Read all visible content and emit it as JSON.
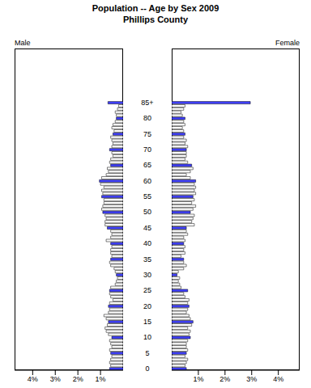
{
  "chart_data": {
    "type": "bar",
    "orientation": "horizontal",
    "title": "Population -- Age by Sex 2009",
    "subtitle": "Phillips County",
    "categories": [
      "0",
      null,
      null,
      null,
      null,
      "5",
      null,
      null,
      null,
      null,
      "10",
      null,
      null,
      null,
      null,
      "15",
      null,
      null,
      null,
      null,
      "20",
      null,
      null,
      null,
      null,
      "25",
      null,
      null,
      null,
      null,
      "30",
      null,
      null,
      null,
      null,
      "35",
      null,
      null,
      null,
      null,
      "40",
      null,
      null,
      null,
      null,
      "45",
      null,
      null,
      null,
      null,
      "50",
      null,
      null,
      null,
      null,
      "55",
      null,
      null,
      null,
      null,
      "60",
      null,
      null,
      null,
      null,
      "65",
      null,
      null,
      null,
      null,
      "70",
      null,
      null,
      null,
      null,
      "75",
      null,
      null,
      null,
      null,
      "80",
      null,
      null,
      null,
      null,
      "85+"
    ],
    "xlim": [
      0,
      4.8
    ],
    "xticks": [
      {
        "value": 1,
        "label": "1%"
      },
      {
        "value": 2,
        "label": "2%"
      },
      {
        "value": 3,
        "label": "3%"
      },
      {
        "value": 4,
        "label": "4%"
      }
    ],
    "series": [
      {
        "name": "Male",
        "colors": [
          "#4040ff",
          "#ffffff",
          "#ffffff",
          "#ffffff",
          "#ffffff",
          "#4040ff",
          "#ffffff",
          "#ffffff",
          "#ffffff",
          "#ffffff",
          "#4040ff",
          "#ffffff",
          "#ffffff",
          "#ffffff",
          "#ffffff",
          "#4040ff",
          "#ffffff",
          "#ffffff",
          "#ffffff",
          "#ffffff",
          "#4040ff",
          "#ffffff",
          "#ffffff",
          "#ffffff",
          "#ffffff",
          "#4040ff",
          "#ffffff",
          "#ffffff",
          "#ffffff",
          "#ffffff",
          "#4040ff",
          "#ffffff",
          "#ffffff",
          "#ffffff",
          "#ffffff",
          "#4040ff",
          "#ffffff",
          "#ffffff",
          "#ffffff",
          "#ffffff",
          "#4040ff",
          "#ffffff",
          "#ffffff",
          "#ffffff",
          "#ffffff",
          "#4040ff",
          "#ffffff",
          "#ffffff",
          "#ffffff",
          "#ffffff",
          "#4040ff",
          "#ffffff",
          "#ffffff",
          "#ffffff",
          "#ffffff",
          "#4040ff",
          "#ffffff",
          "#ffffff",
          "#ffffff",
          "#ffffff",
          "#4040ff",
          "#ffffff",
          "#ffffff",
          "#ffffff",
          "#ffffff",
          "#4040ff",
          "#ffffff",
          "#ffffff",
          "#ffffff",
          "#ffffff",
          "#4040ff",
          "#ffffff",
          "#ffffff",
          "#ffffff",
          "#ffffff",
          "#4040ff",
          "#ffffff",
          "#ffffff",
          "#ffffff",
          "#ffffff",
          "#4040ff",
          "#ffffff",
          "#ffffff",
          "#ffffff",
          "#ffffff",
          "#4040ff"
        ],
        "values": [
          0.6,
          0.55,
          0.6,
          0.55,
          0.5,
          0.55,
          0.6,
          0.5,
          0.55,
          0.6,
          0.5,
          0.65,
          0.75,
          0.8,
          0.7,
          0.65,
          0.75,
          0.85,
          0.65,
          0.6,
          0.65,
          0.6,
          0.45,
          0.55,
          0.6,
          0.6,
          0.55,
          0.35,
          0.3,
          0.25,
          0.3,
          0.35,
          0.4,
          0.55,
          0.6,
          0.55,
          0.5,
          0.55,
          0.55,
          0.5,
          0.55,
          0.75,
          0.55,
          0.5,
          0.55,
          0.7,
          0.8,
          0.8,
          0.75,
          0.8,
          0.9,
          0.95,
          0.9,
          0.85,
          0.85,
          0.95,
          0.9,
          0.95,
          0.85,
          1.0,
          1.05,
          0.95,
          0.75,
          0.65,
          0.7,
          0.55,
          0.6,
          0.55,
          0.45,
          0.5,
          0.6,
          0.5,
          0.45,
          0.5,
          0.55,
          0.45,
          0.4,
          0.5,
          0.45,
          0.35,
          0.3,
          0.3,
          0.35,
          0.25,
          0.2,
          0.67
        ]
      },
      {
        "name": "Female",
        "colors": [
          "#4040ff",
          "#ffffff",
          "#ffffff",
          "#ffffff",
          "#ffffff",
          "#4040ff",
          "#ffffff",
          "#ffffff",
          "#ffffff",
          "#ffffff",
          "#4040ff",
          "#ffffff",
          "#ffffff",
          "#ffffff",
          "#ffffff",
          "#4040ff",
          "#ffffff",
          "#ffffff",
          "#ffffff",
          "#ffffff",
          "#4040ff",
          "#ffffff",
          "#ffffff",
          "#ffffff",
          "#ffffff",
          "#4040ff",
          "#ffffff",
          "#ffffff",
          "#ffffff",
          "#ffffff",
          "#4040ff",
          "#ffffff",
          "#ffffff",
          "#ffffff",
          "#ffffff",
          "#4040ff",
          "#ffffff",
          "#ffffff",
          "#ffffff",
          "#ffffff",
          "#4040ff",
          "#ffffff",
          "#ffffff",
          "#ffffff",
          "#ffffff",
          "#4040ff",
          "#ffffff",
          "#ffffff",
          "#ffffff",
          "#ffffff",
          "#4040ff",
          "#ffffff",
          "#ffffff",
          "#ffffff",
          "#ffffff",
          "#4040ff",
          "#ffffff",
          "#ffffff",
          "#ffffff",
          "#ffffff",
          "#4040ff",
          "#ffffff",
          "#ffffff",
          "#ffffff",
          "#ffffff",
          "#4040ff",
          "#ffffff",
          "#ffffff",
          "#ffffff",
          "#ffffff",
          "#4040ff",
          "#ffffff",
          "#ffffff",
          "#ffffff",
          "#ffffff",
          "#4040ff",
          "#ffffff",
          "#ffffff",
          "#ffffff",
          "#ffffff",
          "#4040ff",
          "#ffffff",
          "#ffffff",
          "#ffffff",
          "#ffffff",
          "#4040ff"
        ],
        "values": [
          0.55,
          0.5,
          0.55,
          0.6,
          0.5,
          0.55,
          0.6,
          0.55,
          0.55,
          0.6,
          0.7,
          0.65,
          0.7,
          0.6,
          0.75,
          0.8,
          0.7,
          0.65,
          0.55,
          0.6,
          0.65,
          0.6,
          0.65,
          0.5,
          0.45,
          0.6,
          0.35,
          0.3,
          0.25,
          0.3,
          0.2,
          0.25,
          0.45,
          0.55,
          0.45,
          0.45,
          0.35,
          0.5,
          0.45,
          0.5,
          0.45,
          0.5,
          0.45,
          0.6,
          0.55,
          0.55,
          0.85,
          0.75,
          0.8,
          0.85,
          0.7,
          0.8,
          0.9,
          0.75,
          0.85,
          0.8,
          0.9,
          0.85,
          0.9,
          0.85,
          0.9,
          0.7,
          0.55,
          0.7,
          0.8,
          0.75,
          0.6,
          0.5,
          0.55,
          0.55,
          0.55,
          0.6,
          0.5,
          0.55,
          0.45,
          0.5,
          0.45,
          0.4,
          0.5,
          0.45,
          0.5,
          0.4,
          0.35,
          0.45,
          0.5,
          2.95
        ]
      }
    ]
  }
}
